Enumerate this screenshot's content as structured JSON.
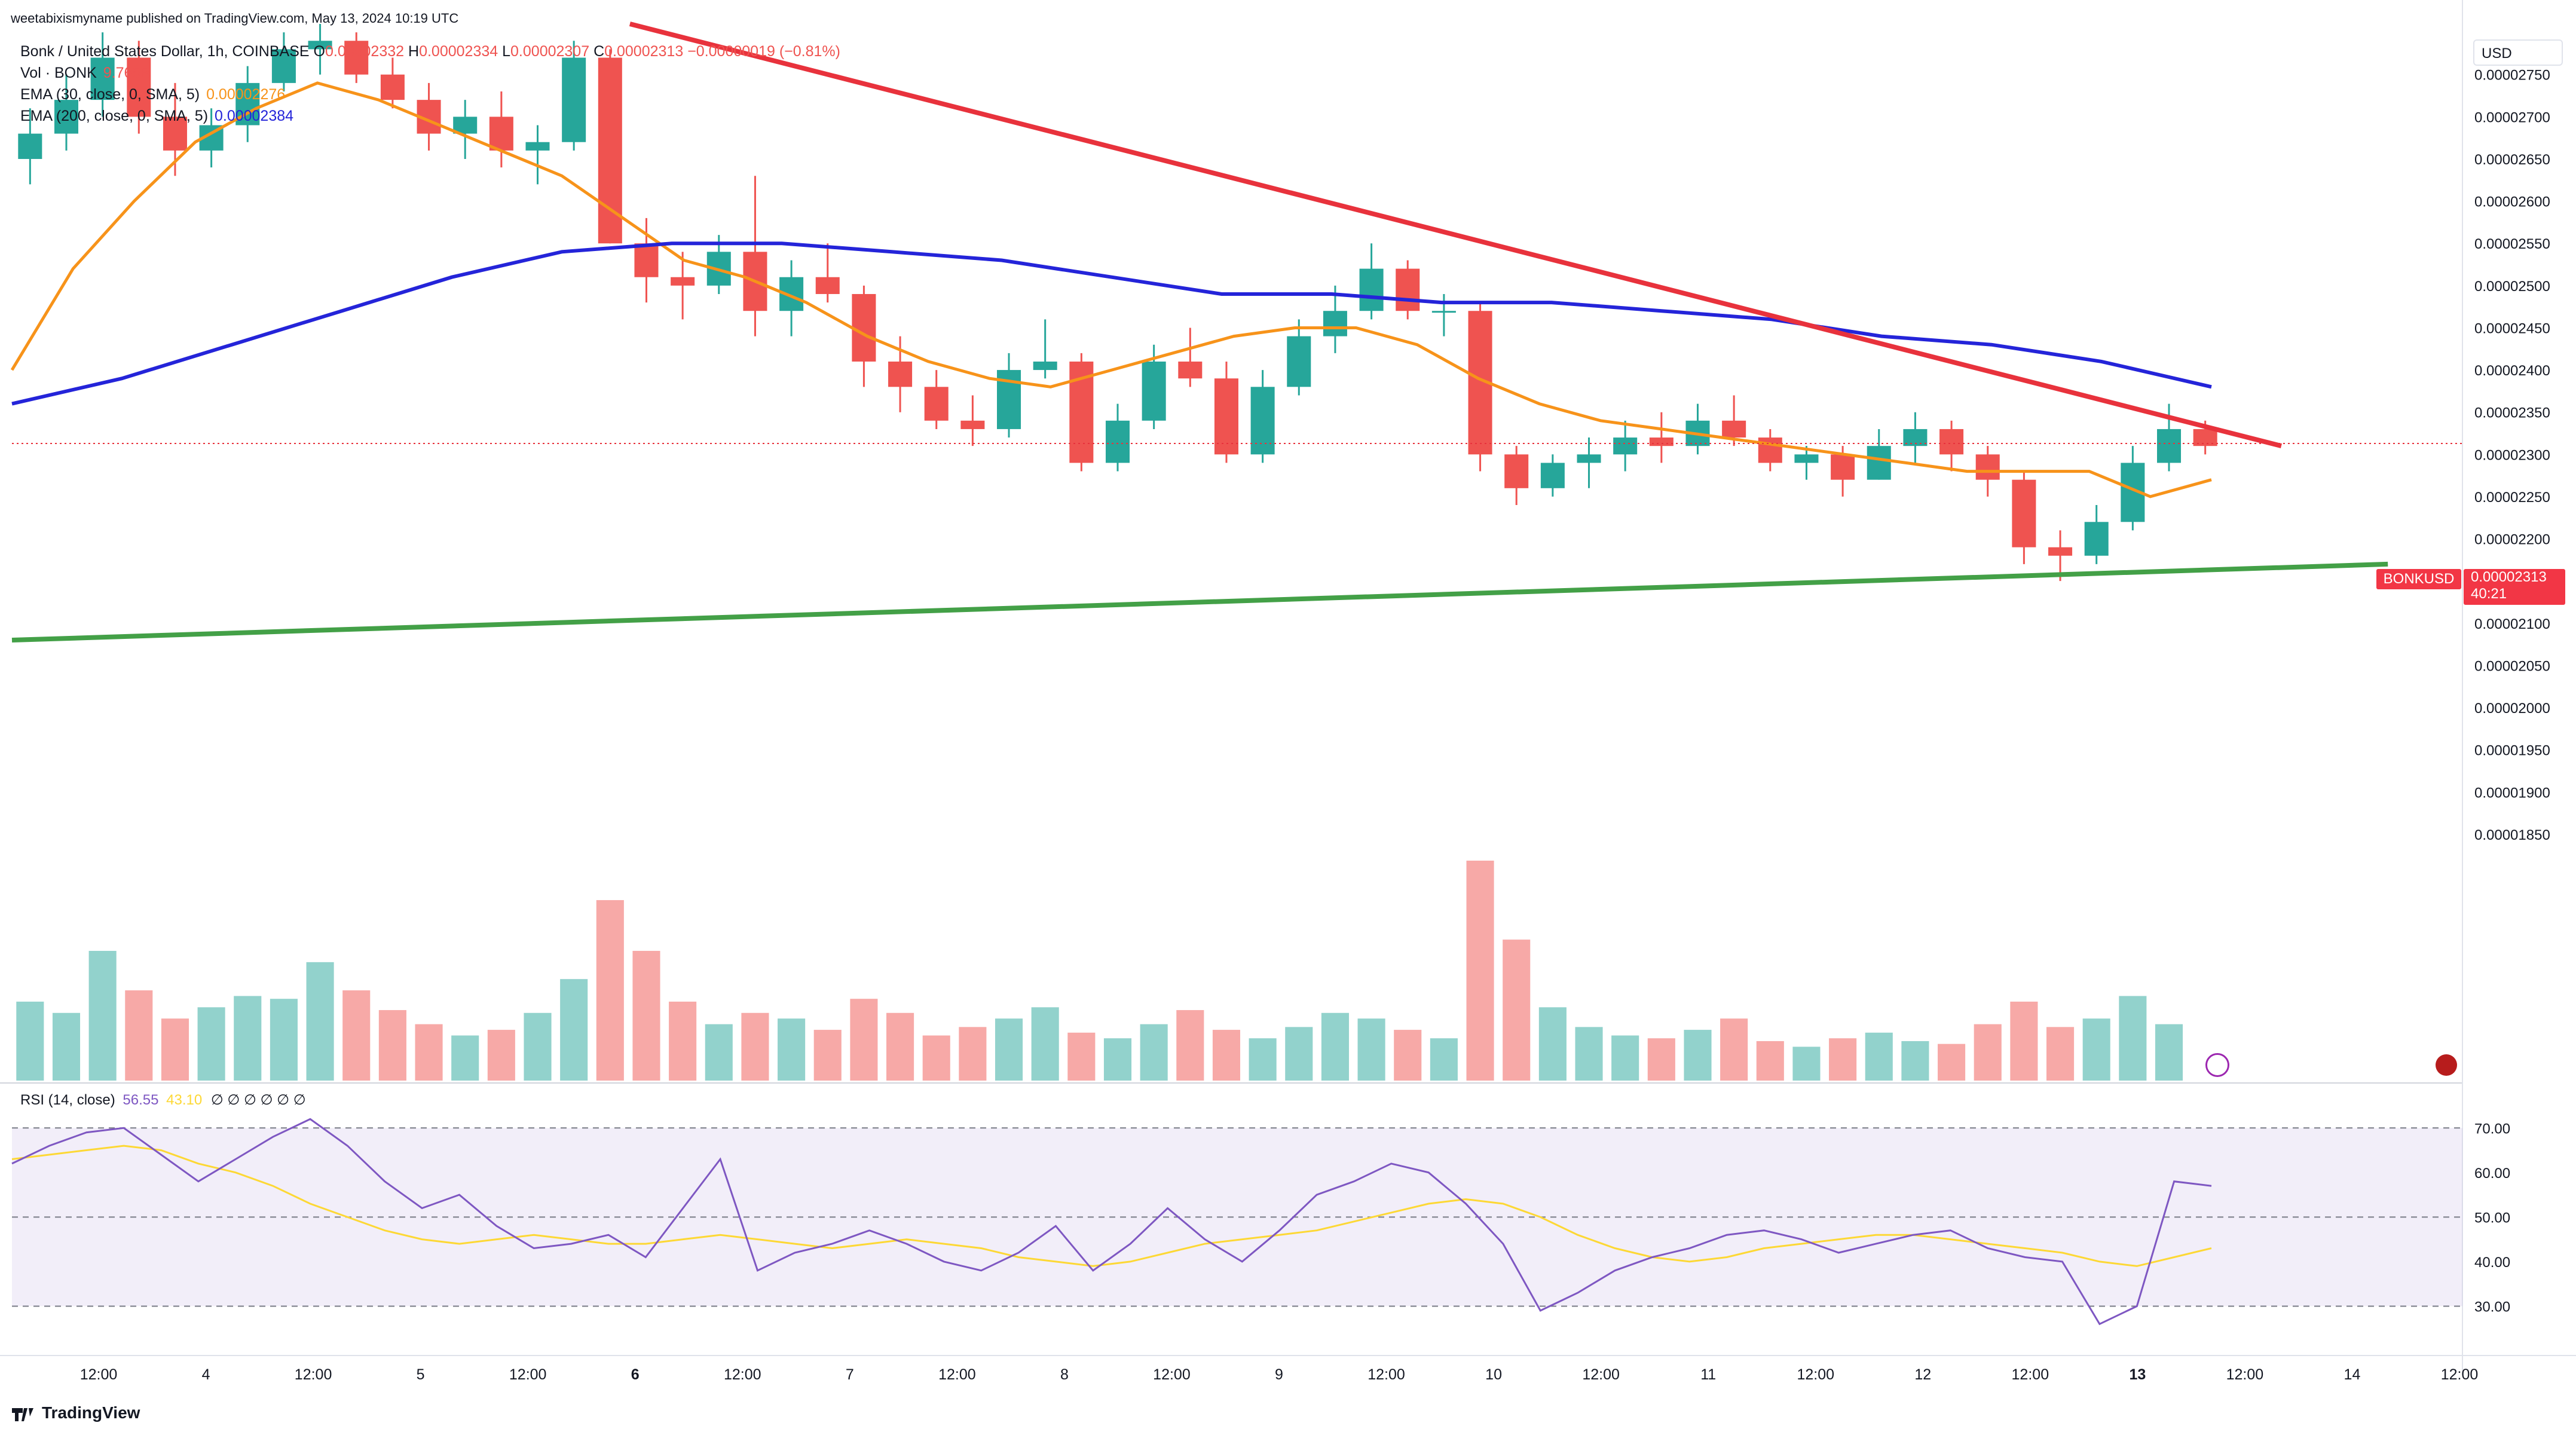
{
  "header": {
    "published": "weetabixismyname published on TradingView.com, May 13, 2024 10:19 UTC"
  },
  "legend": {
    "symbol_line": "Bonk / United States Dollar, 1h, COINBASE",
    "open_label": "O",
    "open": "0.00002332",
    "high_label": "H",
    "high": "0.00002334",
    "low_label": "L",
    "low": "0.00002307",
    "close_label": "C",
    "close": "0.00002313",
    "change": "−0.00000019 (−0.81%)",
    "vol_label": "Vol · BONK",
    "vol_value": "9.765B",
    "ema30_label": "EMA (30, close, 0, SMA, 5)",
    "ema30_value": "0.00002276",
    "ema200_label": "EMA (200, close, 0, SMA, 5)",
    "ema200_value": "0.00002384"
  },
  "rsi_legend": {
    "label": "RSI (14, close)",
    "rsi": "56.55",
    "ma": "43.10",
    "empty": "∅ ∅ ∅ ∅ ∅ ∅"
  },
  "price_scale": {
    "currency": "USD",
    "ticks": [
      "0.00002750",
      "0.00002700",
      "0.00002650",
      "0.00002600",
      "0.00002550",
      "0.00002500",
      "0.00002450",
      "0.00002400",
      "0.00002350",
      "0.00002300",
      "0.00002250",
      "0.00002200",
      "0.00002150",
      "0.00002100",
      "0.00002050",
      "0.00002000",
      "0.00001950",
      "0.00001900",
      "0.00001850"
    ],
    "last_symbol": "BONKUSD",
    "last_price": "0.00002313",
    "countdown": "40:21"
  },
  "rsi_scale": {
    "ticks": [
      "70.00",
      "60.00",
      "50.00",
      "40.00",
      "30.00"
    ]
  },
  "time_axis": {
    "labels": [
      "12:00",
      "4",
      "12:00",
      "5",
      "12:00",
      "6",
      "12:00",
      "7",
      "12:00",
      "8",
      "12:00",
      "9",
      "12:00",
      "10",
      "12:00",
      "11",
      "12:00",
      "12",
      "12:00",
      "13",
      "12:00",
      "14",
      "12:00"
    ]
  },
  "brand": "TradingView",
  "colors": {
    "up": "#26a69a",
    "down": "#ef5350",
    "ema30": "#f7931a",
    "ema200": "#2424d9",
    "resistance": "#e8323c",
    "support": "#43a047",
    "rsi": "#7e57c2",
    "rsi_ma": "#fdd835"
  },
  "chart_data": {
    "type": "candlestick",
    "title": "Bonk / United States Dollar, 1h, COINBASE",
    "ylim": [
      1.84e-05,
      2.81e-05
    ],
    "x_range_hours": [
      0,
      230
    ],
    "ohlc": [
      [
        2.65e-05,
        2.71e-05,
        2.62e-05,
        2.68e-05
      ],
      [
        2.68e-05,
        2.75e-05,
        2.66e-05,
        2.72e-05
      ],
      [
        2.72e-05,
        2.8e-05,
        2.7e-05,
        2.77e-05
      ],
      [
        2.77e-05,
        2.79e-05,
        2.68e-05,
        2.7e-05
      ],
      [
        2.7e-05,
        2.74e-05,
        2.63e-05,
        2.66e-05
      ],
      [
        2.66e-05,
        2.71e-05,
        2.64e-05,
        2.69e-05
      ],
      [
        2.69e-05,
        2.76e-05,
        2.67e-05,
        2.74e-05
      ],
      [
        2.74e-05,
        2.8e-05,
        2.73e-05,
        2.78e-05
      ],
      [
        2.78e-05,
        2.81e-05,
        2.75e-05,
        2.79e-05
      ],
      [
        2.79e-05,
        2.8e-05,
        2.74e-05,
        2.75e-05
      ],
      [
        2.75e-05,
        2.77e-05,
        2.71e-05,
        2.72e-05
      ],
      [
        2.72e-05,
        2.74e-05,
        2.66e-05,
        2.68e-05
      ],
      [
        2.68e-05,
        2.72e-05,
        2.65e-05,
        2.7e-05
      ],
      [
        2.7e-05,
        2.73e-05,
        2.64e-05,
        2.66e-05
      ],
      [
        2.66e-05,
        2.69e-05,
        2.62e-05,
        2.67e-05
      ],
      [
        2.67e-05,
        2.79e-05,
        2.66e-05,
        2.77e-05
      ],
      [
        2.77e-05,
        2.78e-05,
        2.55e-05,
        2.55e-05
      ],
      [
        2.55e-05,
        2.58e-05,
        2.48e-05,
        2.51e-05
      ],
      [
        2.51e-05,
        2.54e-05,
        2.46e-05,
        2.5e-05
      ],
      [
        2.5e-05,
        2.56e-05,
        2.49e-05,
        2.54e-05
      ],
      [
        2.54e-05,
        2.63e-05,
        2.44e-05,
        2.47e-05
      ],
      [
        2.47e-05,
        2.53e-05,
        2.44e-05,
        2.51e-05
      ],
      [
        2.51e-05,
        2.55e-05,
        2.48e-05,
        2.49e-05
      ],
      [
        2.49e-05,
        2.5e-05,
        2.38e-05,
        2.41e-05
      ],
      [
        2.41e-05,
        2.44e-05,
        2.35e-05,
        2.38e-05
      ],
      [
        2.38e-05,
        2.4e-05,
        2.33e-05,
        2.34e-05
      ],
      [
        2.34e-05,
        2.37e-05,
        2.31e-05,
        2.33e-05
      ],
      [
        2.33e-05,
        2.42e-05,
        2.32e-05,
        2.4e-05
      ],
      [
        2.4e-05,
        2.46e-05,
        2.39e-05,
        2.41e-05
      ],
      [
        2.41e-05,
        2.42e-05,
        2.28e-05,
        2.29e-05
      ],
      [
        2.29e-05,
        2.36e-05,
        2.28e-05,
        2.34e-05
      ],
      [
        2.34e-05,
        2.43e-05,
        2.33e-05,
        2.41e-05
      ],
      [
        2.41e-05,
        2.45e-05,
        2.38e-05,
        2.39e-05
      ],
      [
        2.39e-05,
        2.41e-05,
        2.29e-05,
        2.3e-05
      ],
      [
        2.3e-05,
        2.4e-05,
        2.29e-05,
        2.38e-05
      ],
      [
        2.38e-05,
        2.46e-05,
        2.37e-05,
        2.44e-05
      ],
      [
        2.44e-05,
        2.5e-05,
        2.42e-05,
        2.47e-05
      ],
      [
        2.47e-05,
        2.55e-05,
        2.46e-05,
        2.52e-05
      ],
      [
        2.52e-05,
        2.53e-05,
        2.46e-05,
        2.47e-05
      ],
      [
        2.47e-05,
        2.49e-05,
        2.44e-05,
        2.47e-05
      ],
      [
        2.47e-05,
        2.48e-05,
        2.28e-05,
        2.3e-05
      ],
      [
        2.3e-05,
        2.31e-05,
        2.24e-05,
        2.26e-05
      ],
      [
        2.26e-05,
        2.3e-05,
        2.25e-05,
        2.29e-05
      ],
      [
        2.29e-05,
        2.32e-05,
        2.26e-05,
        2.3e-05
      ],
      [
        2.3e-05,
        2.34e-05,
        2.28e-05,
        2.32e-05
      ],
      [
        2.32e-05,
        2.35e-05,
        2.29e-05,
        2.31e-05
      ],
      [
        2.31e-05,
        2.36e-05,
        2.3e-05,
        2.34e-05
      ],
      [
        2.34e-05,
        2.37e-05,
        2.31e-05,
        2.32e-05
      ],
      [
        2.32e-05,
        2.33e-05,
        2.28e-05,
        2.29e-05
      ],
      [
        2.29e-05,
        2.31e-05,
        2.27e-05,
        2.3e-05
      ],
      [
        2.3e-05,
        2.31e-05,
        2.25e-05,
        2.27e-05
      ],
      [
        2.27e-05,
        2.33e-05,
        2.27e-05,
        2.31e-05
      ],
      [
        2.31e-05,
        2.35e-05,
        2.29e-05,
        2.33e-05
      ],
      [
        2.33e-05,
        2.34e-05,
        2.28e-05,
        2.3e-05
      ],
      [
        2.3e-05,
        2.31e-05,
        2.25e-05,
        2.27e-05
      ],
      [
        2.27e-05,
        2.28e-05,
        2.17e-05,
        2.19e-05
      ],
      [
        2.19e-05,
        2.21e-05,
        2.15e-05,
        2.18e-05
      ],
      [
        2.18e-05,
        2.24e-05,
        2.17e-05,
        2.22e-05
      ],
      [
        2.22e-05,
        2.31e-05,
        2.21e-05,
        2.29e-05
      ],
      [
        2.29e-05,
        2.36e-05,
        2.28e-05,
        2.33e-05
      ],
      [
        2.33e-05,
        2.34e-05,
        2.3e-05,
        2.31e-05
      ]
    ],
    "volume": [
      2.8,
      2.4,
      4.6,
      3.2,
      2.2,
      2.6,
      3.0,
      2.9,
      4.2,
      3.2,
      2.5,
      2.0,
      1.6,
      1.8,
      2.4,
      3.6,
      6.4,
      4.6,
      2.8,
      2.0,
      2.4,
      2.2,
      1.8,
      2.9,
      2.4,
      1.6,
      1.9,
      2.2,
      2.6,
      1.7,
      1.5,
      2.0,
      2.5,
      1.8,
      1.5,
      1.9,
      2.4,
      2.2,
      1.8,
      1.5,
      7.8,
      5.0,
      2.6,
      1.9,
      1.6,
      1.5,
      1.8,
      2.2,
      1.4,
      1.2,
      1.5,
      1.7,
      1.4,
      1.3,
      2.0,
      2.8,
      1.9,
      2.2,
      3.0,
      2.0
    ],
    "ema30": [
      2.4e-05,
      2.52e-05,
      2.6e-05,
      2.67e-05,
      2.71e-05,
      2.74e-05,
      2.72e-05,
      2.69e-05,
      2.66e-05,
      2.63e-05,
      2.58e-05,
      2.53e-05,
      2.51e-05,
      2.48e-05,
      2.44e-05,
      2.41e-05,
      2.39e-05,
      2.38e-05,
      2.4e-05,
      2.42e-05,
      2.44e-05,
      2.45e-05,
      2.45e-05,
      2.43e-05,
      2.39e-05,
      2.36e-05,
      2.34e-05,
      2.33e-05,
      2.32e-05,
      2.31e-05,
      2.3e-05,
      2.29e-05,
      2.28e-05,
      2.28e-05,
      2.28e-05,
      2.25e-05,
      2.27e-05
    ],
    "ema200": [
      2.36e-05,
      2.39e-05,
      2.43e-05,
      2.47e-05,
      2.51e-05,
      2.54e-05,
      2.55e-05,
      2.55e-05,
      2.54e-05,
      2.53e-05,
      2.51e-05,
      2.49e-05,
      2.49e-05,
      2.48e-05,
      2.48e-05,
      2.47e-05,
      2.46e-05,
      2.44e-05,
      2.43e-05,
      2.41e-05,
      2.38e-05
    ],
    "resistance_line": {
      "from": [
        58,
        2.81e-05
      ],
      "to": [
        213,
        2.31e-05
      ]
    },
    "support_line": {
      "from": [
        0,
        2.08e-05
      ],
      "to": [
        223,
        2.17e-05
      ]
    },
    "rsi": {
      "ylim": [
        20,
        75
      ],
      "bands": [
        30,
        50,
        70
      ],
      "values": [
        62,
        66,
        69,
        70,
        64,
        58,
        63,
        68,
        72,
        66,
        58,
        52,
        55,
        48,
        43,
        44,
        46,
        41,
        52,
        63,
        38,
        42,
        44,
        47,
        44,
        40,
        38,
        42,
        48,
        38,
        44,
        52,
        45,
        40,
        47,
        55,
        58,
        62,
        60,
        53,
        44,
        29,
        33,
        38,
        41,
        43,
        46,
        47,
        45,
        42,
        44,
        46,
        47,
        43,
        41,
        40,
        26,
        30,
        58,
        57
      ],
      "ma": [
        63,
        64,
        65,
        66,
        65,
        62,
        60,
        57,
        53,
        50,
        47,
        45,
        44,
        45,
        46,
        45,
        44,
        44,
        45,
        46,
        45,
        44,
        43,
        44,
        45,
        44,
        43,
        41,
        40,
        39,
        40,
        42,
        44,
        45,
        46,
        47,
        49,
        51,
        53,
        54,
        53,
        50,
        46,
        43,
        41,
        40,
        41,
        43,
        44,
        45,
        46,
        46,
        45,
        44,
        43,
        42,
        40,
        39,
        41,
        43
      ]
    }
  }
}
